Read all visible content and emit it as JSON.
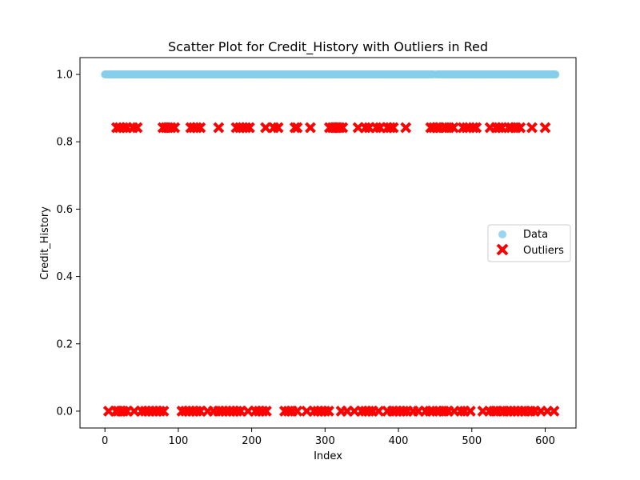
{
  "chart_data": {
    "type": "scatter",
    "title": "Scatter Plot for Credit_History with Outliers in Red",
    "xlabel": "Index",
    "ylabel": "Credit_History",
    "xlim": [
      -34,
      642
    ],
    "ylim": [
      -0.05,
      1.05
    ],
    "xticks": [
      0,
      100,
      200,
      300,
      400,
      500,
      600
    ],
    "yticks": [
      0.0,
      0.2,
      0.4,
      0.6,
      0.8,
      1.0
    ],
    "xtick_labels": [
      "0",
      "100",
      "200",
      "300",
      "400",
      "500",
      "600"
    ],
    "ytick_labels": [
      "0.0",
      "0.2",
      "0.4",
      "0.6",
      "0.8",
      "1.0"
    ],
    "grid": false,
    "legend_position": "center-right",
    "legend": {
      "entries": [
        {
          "label": "Data",
          "marker": "circle",
          "color": "#87ceeb"
        },
        {
          "label": "Outliers",
          "marker": "x",
          "color": "#ff0000"
        }
      ]
    },
    "series": [
      {
        "name": "Data",
        "marker": "circle",
        "color": "#87ceeb",
        "y": 1.0,
        "x_ranges": [
          [
            0,
            448
          ],
          [
            452,
            614
          ]
        ]
      },
      {
        "name": "Outliers",
        "marker": "x",
        "color": "#ff0000",
        "groups": [
          {
            "y": 0.842,
            "x": [
              16,
              20,
              25,
              30,
              38,
              44,
              79,
              83,
              86,
              90,
              95,
              117,
              121,
              125,
              130,
              155,
              179,
              184,
              188,
              192,
              197,
              219,
              230,
              236,
              259,
              262,
              280,
              306,
              310,
              313,
              317,
              320,
              324,
              345,
              355,
              360,
              370,
              375,
              385,
              389,
              393,
              410,
              444,
              448,
              452,
              456,
              463,
              469,
              475,
              488,
              493,
              497,
              502,
              506,
              525,
              533,
              537,
              541,
              550,
              554,
              560,
              566,
              582,
              600
            ]
          },
          {
            "y": 0.0,
            "x": [
              5,
              15,
              18,
              22,
              25,
              30,
              40,
              50,
              55,
              60,
              65,
              70,
              75,
              80,
              105,
              110,
              115,
              120,
              125,
              130,
              140,
              148,
              155,
              160,
              165,
              170,
              175,
              180,
              185,
              195,
              205,
              210,
              215,
              220,
              245,
              250,
              255,
              262,
              275,
              285,
              290,
              295,
              300,
              305,
              322,
              330,
              340,
              350,
              355,
              360,
              365,
              373,
              385,
              392,
              397,
              402,
              407,
              412,
              420,
              427,
              437,
              443,
              447,
              452,
              456,
              462,
              468,
              476,
              485,
              490,
              498,
              515,
              524,
              530,
              535,
              542,
              548,
              553,
              558,
              563,
              568,
              573,
              580,
              586,
              594,
              603,
              612
            ]
          }
        ]
      }
    ]
  }
}
